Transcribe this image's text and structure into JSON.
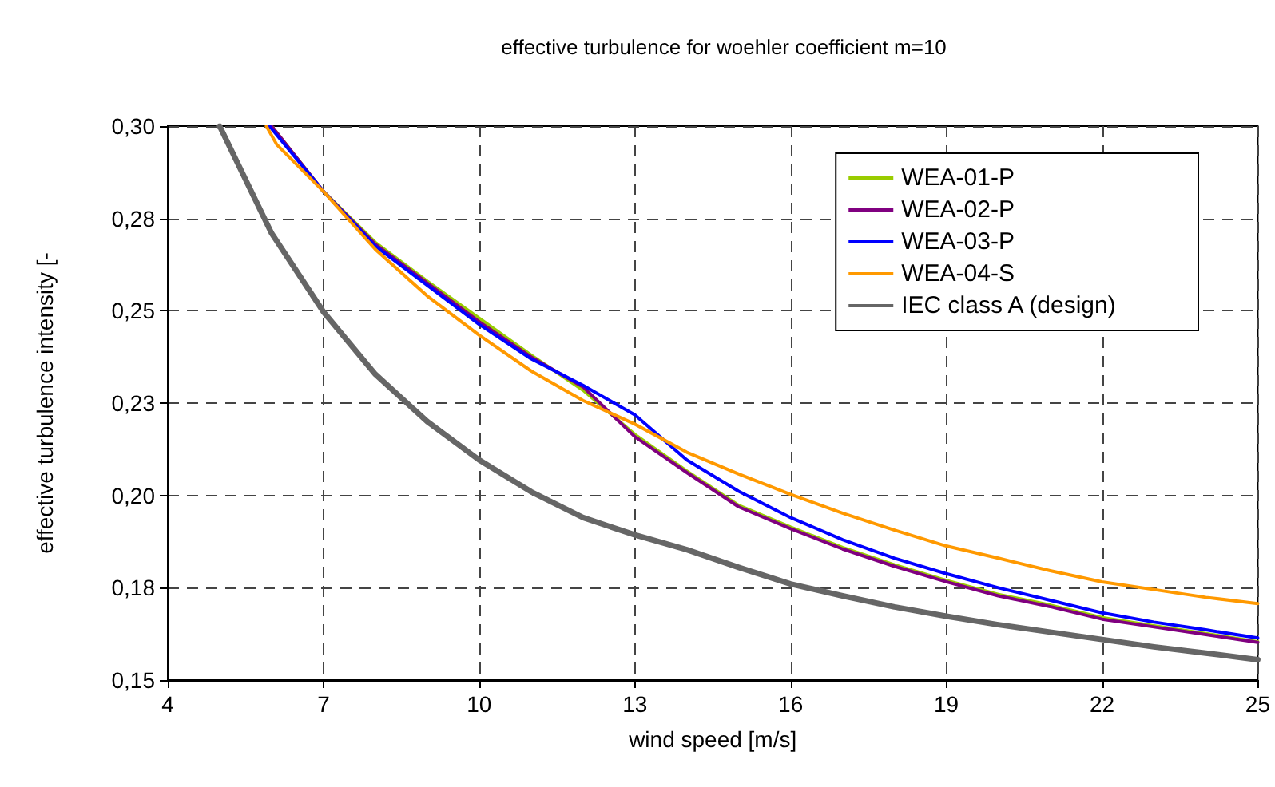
{
  "chart_data": {
    "type": "line",
    "title": "effective turbulence for woehler coefficient m=10",
    "xlabel": "wind speed [m/s]",
    "ylabel": "effective turbulence intensity [-",
    "xlim": [
      4,
      25
    ],
    "xticks": [
      4,
      7,
      10,
      13,
      16,
      19,
      22,
      25
    ],
    "ylim": [
      0.15,
      0.3
    ],
    "yticks": [
      {
        "value": 0.15,
        "label": "0,15"
      },
      {
        "value": 0.175,
        "label": "0,18"
      },
      {
        "value": 0.2,
        "label": "0,20"
      },
      {
        "value": 0.225,
        "label": "0,23"
      },
      {
        "value": 0.25,
        "label": "0,25"
      },
      {
        "value": 0.275,
        "label": "0,28"
      },
      {
        "value": 0.3,
        "label": "0,30"
      }
    ],
    "grid": true,
    "legend": "top right",
    "marker": "none",
    "line_style": "solid",
    "series": [
      {
        "name": "WEA-01-P",
        "color": "#99cc00",
        "x": [
          6,
          7,
          8,
          9,
          10,
          11,
          12,
          13,
          14,
          15,
          16,
          17,
          18,
          19,
          20,
          21,
          22,
          23,
          24,
          25
        ],
        "values": [
          0.3,
          0.2823,
          0.2685,
          0.258,
          0.248,
          0.238,
          0.2285,
          0.2165,
          0.2066,
          0.1973,
          0.1914,
          0.1859,
          0.1812,
          0.177,
          0.1732,
          0.1703,
          0.1669,
          0.1647,
          0.1626,
          0.1604
        ]
      },
      {
        "name": "WEA-02-P",
        "color": "#800080",
        "x": [
          6,
          7,
          8,
          9,
          10,
          11,
          12,
          13,
          14,
          15,
          16,
          17,
          18,
          19,
          20,
          21,
          22,
          23,
          24,
          25
        ],
        "values": [
          0.3,
          0.2823,
          0.268,
          0.2575,
          0.247,
          0.2375,
          0.2294,
          0.2159,
          0.2062,
          0.1969,
          0.191,
          0.1855,
          0.1808,
          0.1766,
          0.1728,
          0.1699,
          0.1665,
          0.1644,
          0.1623,
          0.1602
        ]
      },
      {
        "name": "WEA-03-P",
        "color": "#0000ff",
        "x": [
          5.96,
          7,
          8,
          9,
          10,
          11,
          12,
          13,
          14,
          15,
          16,
          17,
          18,
          19,
          20,
          21,
          22,
          23,
          24,
          25
        ],
        "values": [
          0.3,
          0.2823,
          0.2675,
          0.2569,
          0.2463,
          0.237,
          0.2298,
          0.2218,
          0.2096,
          0.2011,
          0.194,
          0.188,
          0.183,
          0.1788,
          0.175,
          0.1716,
          0.1682,
          0.1657,
          0.1636,
          0.1614
        ]
      },
      {
        "name": "WEA-04-S",
        "color": "#ff9900",
        "x": [
          5.9,
          6.1,
          7,
          8,
          9,
          10,
          11,
          12,
          13,
          14,
          15,
          16,
          17,
          18,
          19,
          20,
          21,
          22,
          23,
          24,
          25
        ],
        "values": [
          0.3,
          0.295,
          0.2823,
          0.2666,
          0.254,
          0.2434,
          0.2337,
          0.2257,
          0.2193,
          0.2117,
          0.2058,
          0.2003,
          0.1952,
          0.1906,
          0.1863,
          0.183,
          0.1796,
          0.1766,
          0.1745,
          0.1724,
          0.1707
        ]
      },
      {
        "name": "IEC class A (design)",
        "color": "#666666",
        "x": [
          5,
          6,
          7,
          8,
          9,
          10,
          11,
          12,
          13,
          14,
          15,
          16,
          17,
          18,
          19,
          20,
          21,
          22,
          23,
          24,
          25
        ],
        "values": [
          0.3,
          0.271,
          0.2497,
          0.2328,
          0.22,
          0.2096,
          0.201,
          0.194,
          0.1893,
          0.1853,
          0.1805,
          0.176,
          0.1728,
          0.1698,
          0.1673,
          0.165,
          0.163,
          0.161,
          0.159,
          0.1573,
          0.1555
        ]
      }
    ]
  }
}
